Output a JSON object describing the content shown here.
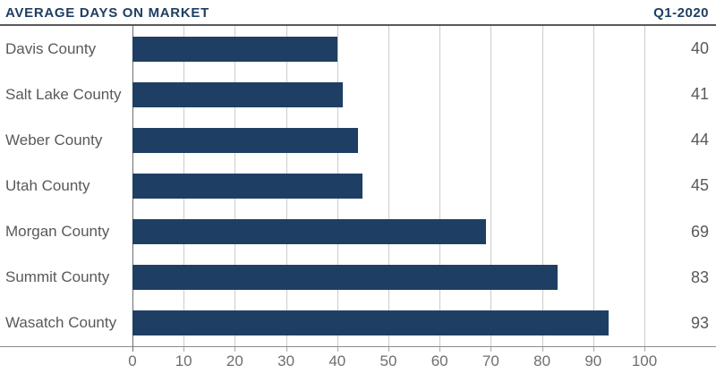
{
  "header": {
    "title": "AVERAGE DAYS ON MARKET",
    "period": "Q1-2020"
  },
  "chart_data": {
    "type": "bar",
    "orientation": "horizontal",
    "title": "AVERAGE DAYS ON MARKET",
    "subtitle": "Q1-2020",
    "categories": [
      "Davis County",
      "Salt Lake County",
      "Weber County",
      "Utah County",
      "Morgan County",
      "Summit County",
      "Wasatch County"
    ],
    "values": [
      40,
      41,
      44,
      45,
      69,
      83,
      93
    ],
    "value_labels": [
      "40",
      "41",
      "44",
      "45",
      "69",
      "83",
      "93"
    ],
    "xlabel": "",
    "ylabel": "",
    "xlim": [
      0,
      100
    ],
    "x_ticks": [
      0,
      10,
      20,
      30,
      40,
      50,
      60,
      70,
      80,
      90,
      100
    ],
    "grid": true,
    "legend": "none",
    "bar_color": "#1e3f63"
  },
  "colors": {
    "navy": "#1e3e63",
    "bar": "#1e3f63",
    "label_gray": "#58595b",
    "tick_gray": "#6d6e70",
    "gridline": "#cccccc",
    "axis_line": "#8a8c8e",
    "header_rule": "#58595b"
  }
}
